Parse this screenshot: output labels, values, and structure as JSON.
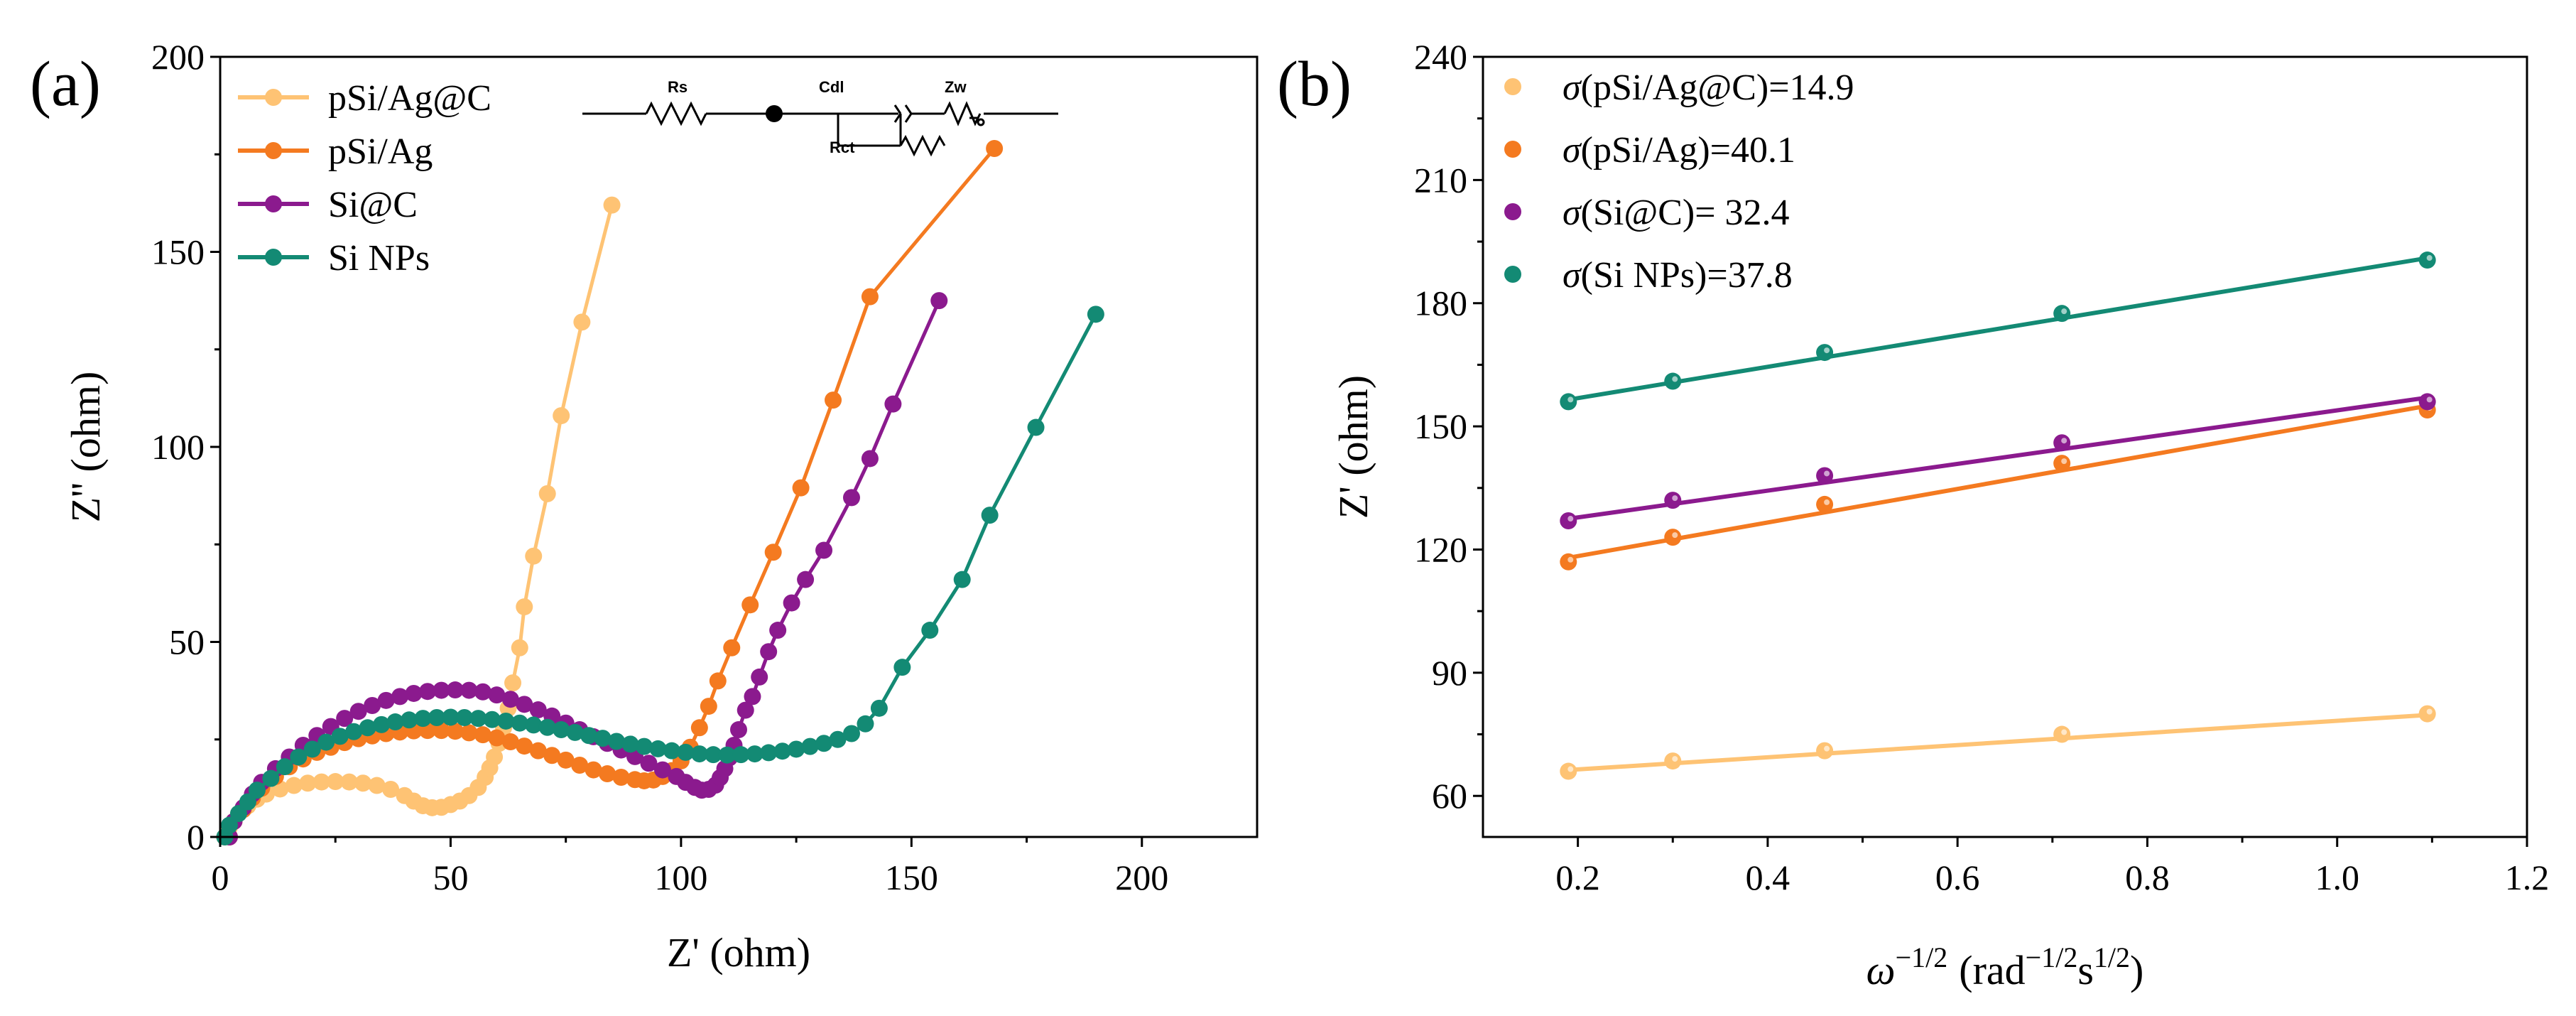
{
  "colors": {
    "pSi_Ag_C": "#FEC374",
    "pSi_Ag": "#F47A20",
    "Si_C": "#8B1A8E",
    "Si_NPs": "#138A74"
  },
  "chart_data": [
    {
      "panel": "(a)",
      "type": "line",
      "xlabel": "Z' (ohm)",
      "ylabel": "Z'' (ohm)",
      "xlim": [
        0,
        225
      ],
      "ylim": [
        0,
        200
      ],
      "xticks": [
        0,
        50,
        100,
        150,
        200
      ],
      "yticks": [
        0,
        50,
        100,
        150,
        200
      ],
      "legend_position": "top-left",
      "circuit_labels": {
        "rs": "Rs",
        "cdl": "Cdl",
        "zw": "Zw",
        "rct": "Rct"
      },
      "series": [
        {
          "name": "pSi/Ag@C",
          "color_key": "pSi_Ag_C",
          "points": [
            [
              1,
              0
            ],
            [
              2,
              2.5
            ],
            [
              3,
              4
            ],
            [
              4,
              6
            ],
            [
              6,
              8
            ],
            [
              8,
              9.7
            ],
            [
              10,
              11
            ],
            [
              13,
              12.3
            ],
            [
              16,
              13.2
            ],
            [
              19,
              13.8
            ],
            [
              22,
              14.1
            ],
            [
              25,
              14.2
            ],
            [
              28,
              14.1
            ],
            [
              31,
              13.8
            ],
            [
              34,
              13.2
            ],
            [
              37,
              12.2
            ],
            [
              40,
              10.6
            ],
            [
              42,
              9.2
            ],
            [
              44,
              8
            ],
            [
              46,
              7.5
            ],
            [
              48,
              7.6
            ],
            [
              50,
              8.3
            ],
            [
              52,
              9.2
            ],
            [
              54,
              10.6
            ],
            [
              56,
              12.7
            ],
            [
              57.5,
              15.3
            ],
            [
              58.5,
              17.7
            ],
            [
              59.5,
              20.5
            ],
            [
              60.5,
              24
            ],
            [
              61.5,
              28
            ],
            [
              62.5,
              33
            ],
            [
              63.5,
              39.5
            ],
            [
              65,
              48.5
            ],
            [
              66,
              59
            ],
            [
              68,
              72
            ],
            [
              71,
              88
            ],
            [
              74,
              108
            ],
            [
              78.5,
              132
            ],
            [
              85,
              162
            ]
          ]
        },
        {
          "name": "pSi/Ag",
          "color_key": "pSi_Ag",
          "points": [
            [
              2,
              0
            ],
            [
              3,
              4
            ],
            [
              5,
              7
            ],
            [
              7,
              10
            ],
            [
              9,
              12.5
            ],
            [
              12,
              15.5
            ],
            [
              15,
              18
            ],
            [
              18,
              20
            ],
            [
              21,
              21.7
            ],
            [
              24,
              23
            ],
            [
              27,
              24.2
            ],
            [
              30,
              25.2
            ],
            [
              33,
              25.9
            ],
            [
              36,
              26.5
            ],
            [
              39,
              26.9
            ],
            [
              42,
              27.2
            ],
            [
              45,
              27.3
            ],
            [
              48,
              27.3
            ],
            [
              51,
              27.1
            ],
            [
              54,
              26.7
            ],
            [
              57,
              26.2
            ],
            [
              60,
              25.4
            ],
            [
              63,
              24.4
            ],
            [
              66,
              23.3
            ],
            [
              69,
              22.1
            ],
            [
              72,
              20.9
            ],
            [
              75,
              19.7
            ],
            [
              78,
              18.4
            ],
            [
              81,
              17.2
            ],
            [
              84,
              16.2
            ],
            [
              87,
              15.3
            ],
            [
              90,
              14.7
            ],
            [
              92,
              14.4
            ],
            [
              94,
              14.6
            ],
            [
              96,
              15.5
            ],
            [
              98,
              17
            ],
            [
              100,
              19.5
            ],
            [
              102,
              23
            ],
            [
              104,
              28
            ],
            [
              106,
              33.5
            ],
            [
              108,
              40
            ],
            [
              111,
              48.5
            ],
            [
              115,
              59.5
            ],
            [
              120,
              73
            ],
            [
              126,
              89.5
            ],
            [
              133,
              112
            ],
            [
              141,
              138.5
            ],
            [
              168,
              176.5
            ]
          ]
        },
        {
          "name": "Si@C",
          "color_key": "Si_C",
          "points": [
            [
              2,
              0
            ],
            [
              3,
              4
            ],
            [
              5,
              7.5
            ],
            [
              7,
              11
            ],
            [
              9,
              14
            ],
            [
              12,
              17.5
            ],
            [
              15,
              20.5
            ],
            [
              18,
              23.5
            ],
            [
              21,
              26
            ],
            [
              24,
              28.3
            ],
            [
              27,
              30.4
            ],
            [
              30,
              32.2
            ],
            [
              33,
              33.7
            ],
            [
              36,
              35
            ],
            [
              39,
              36
            ],
            [
              42,
              36.8
            ],
            [
              45,
              37.3
            ],
            [
              48,
              37.6
            ],
            [
              51,
              37.7
            ],
            [
              54,
              37.6
            ],
            [
              57,
              37.2
            ],
            [
              60,
              36.4
            ],
            [
              63,
              35.3
            ],
            [
              66,
              34
            ],
            [
              69,
              32.6
            ],
            [
              72,
              31
            ],
            [
              75,
              29.2
            ],
            [
              78,
              27.5
            ],
            [
              81,
              25.7
            ],
            [
              84,
              24
            ],
            [
              87,
              22.3
            ],
            [
              90,
              20.6
            ],
            [
              93,
              18.9
            ],
            [
              96,
              17.2
            ],
            [
              99,
              15.5
            ],
            [
              101,
              14
            ],
            [
              103,
              12.7
            ],
            [
              104.5,
              12
            ],
            [
              106,
              12.2
            ],
            [
              107.5,
              13.3
            ],
            [
              108.5,
              15.2
            ],
            [
              109.5,
              17.5
            ],
            [
              110.5,
              20.3
            ],
            [
              111.5,
              23.5
            ],
            [
              112.5,
              27.5
            ],
            [
              114,
              32.5
            ],
            [
              115.5,
              36
            ],
            [
              117,
              41
            ],
            [
              119,
              47.5
            ],
            [
              121,
              53
            ],
            [
              124,
              60
            ],
            [
              127,
              66
            ],
            [
              131,
              73.5
            ],
            [
              137,
              87
            ],
            [
              141,
              97
            ],
            [
              146,
              111
            ],
            [
              156,
              137.5
            ]
          ]
        },
        {
          "name": "Si NPs",
          "color_key": "Si_NPs",
          "points": [
            [
              1,
              0
            ],
            [
              2,
              3
            ],
            [
              4,
              6
            ],
            [
              6,
              9
            ],
            [
              8,
              12
            ],
            [
              11,
              15
            ],
            [
              14,
              18
            ],
            [
              17,
              20.5
            ],
            [
              20,
              22.5
            ],
            [
              23,
              24.3
            ],
            [
              26,
              25.8
            ],
            [
              29,
              27
            ],
            [
              32,
              28
            ],
            [
              35,
              28.8
            ],
            [
              38,
              29.5
            ],
            [
              41,
              30
            ],
            [
              44,
              30.4
            ],
            [
              47,
              30.6
            ],
            [
              50,
              30.7
            ],
            [
              53,
              30.6
            ],
            [
              56,
              30.4
            ],
            [
              59,
              30.1
            ],
            [
              62,
              29.7
            ],
            [
              65,
              29.2
            ],
            [
              68,
              28.7
            ],
            [
              71,
              28.1
            ],
            [
              74,
              27.5
            ],
            [
              77,
              26.8
            ],
            [
              80,
              26
            ],
            [
              83,
              25.3
            ],
            [
              86,
              24.5
            ],
            [
              89,
              23.8
            ],
            [
              92,
              23.2
            ],
            [
              95,
              22.6
            ],
            [
              98,
              22.1
            ],
            [
              101,
              21.7
            ],
            [
              104,
              21.3
            ],
            [
              107,
              21.1
            ],
            [
              110,
              21
            ],
            [
              113,
              21.1
            ],
            [
              116,
              21.3
            ],
            [
              119,
              21.6
            ],
            [
              122,
              22
            ],
            [
              125,
              22.5
            ],
            [
              128,
              23.2
            ],
            [
              131,
              24
            ],
            [
              134,
              25
            ],
            [
              137,
              26.5
            ],
            [
              140,
              29
            ],
            [
              143,
              33
            ],
            [
              148,
              43.5
            ],
            [
              154,
              53
            ],
            [
              161,
              66
            ],
            [
              167,
              82.5
            ],
            [
              177,
              105
            ],
            [
              190,
              134
            ]
          ]
        }
      ]
    },
    {
      "panel": "(b)",
      "type": "scatter",
      "xlabel": "ω",
      "xlabel_exp": "−1/2",
      "xlabel_units": "(rad",
      "xlabel_units_exp": "−1/2",
      "xlabel_units_s": "s",
      "xlabel_units_s_exp": "1/2",
      "xlabel_close": ")",
      "ylabel": "Z' (ohm)",
      "xlim": [
        0.1,
        1.2
      ],
      "ylim": [
        50,
        240
      ],
      "xticks": [
        0.2,
        0.4,
        0.6,
        0.8,
        1.0,
        1.2
      ],
      "yticks": [
        60,
        90,
        120,
        150,
        180,
        210,
        240
      ],
      "legend_position": "top-left",
      "series": [
        {
          "name": "σ(pSi/Ag@C)=14.9",
          "color_key": "pSi_Ag_C",
          "x": [
            0.19,
            0.3,
            0.46,
            0.71,
            1.095
          ],
          "y": [
            66,
            68.5,
            71,
            75,
            80
          ],
          "fit": {
            "x": [
              0.19,
              1.095
            ],
            "y": [
              66.3,
              79.7
            ]
          }
        },
        {
          "name": "σ(pSi/Ag)=40.1",
          "color_key": "pSi_Ag",
          "x": [
            0.19,
            0.3,
            0.46,
            0.71,
            1.095
          ],
          "y": [
            117,
            123,
            131,
            141,
            154
          ],
          "fit": {
            "x": [
              0.19,
              1.095
            ],
            "y": [
              118,
              155
            ]
          }
        },
        {
          "name": "σ(Si@C)= 32.4",
          "color_key": "Si_C",
          "x": [
            0.19,
            0.3,
            0.46,
            0.71,
            1.095
          ],
          "y": [
            127,
            132,
            138,
            146,
            156
          ],
          "fit": {
            "x": [
              0.19,
              1.095
            ],
            "y": [
              127.5,
              157
            ]
          }
        },
        {
          "name": "σ(Si NPs)=37.8",
          "color_key": "Si_NPs",
          "x": [
            0.19,
            0.3,
            0.46,
            0.71,
            1.095
          ],
          "y": [
            156,
            161,
            168,
            177.5,
            190.5
          ],
          "fit": {
            "x": [
              0.19,
              1.095
            ],
            "y": [
              156.5,
              191
            ]
          }
        }
      ]
    }
  ]
}
